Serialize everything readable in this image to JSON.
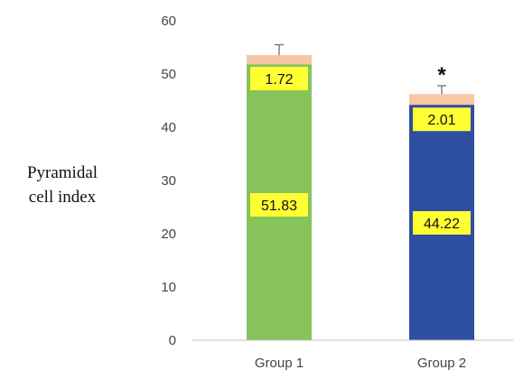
{
  "chart_data": {
    "type": "bar",
    "stacked": true,
    "ylabel_lines": [
      "Pyramidal",
      "cell index"
    ],
    "xlabel": "",
    "ylim": [
      0,
      60
    ],
    "yticks": [
      0,
      10,
      20,
      30,
      40,
      50,
      60
    ],
    "categories": [
      "Group 1",
      "Group 2"
    ],
    "series": [
      {
        "values": [
          51.83,
          44.22
        ],
        "colors": [
          "#86c35a",
          "#2e4fa0"
        ]
      },
      {
        "values": [
          1.72,
          2.01
        ],
        "colors": [
          "#f7c7a4",
          "#f7c7a4"
        ]
      }
    ],
    "data_labels": [
      [
        "51.83",
        "44.22"
      ],
      [
        "1.72",
        "2.01"
      ]
    ],
    "error_bar_tops": [
      55.5,
      47.8
    ],
    "significance_markers": [
      "",
      "*"
    ],
    "label_background": "#ffff33",
    "grid": false,
    "legend": "none"
  }
}
